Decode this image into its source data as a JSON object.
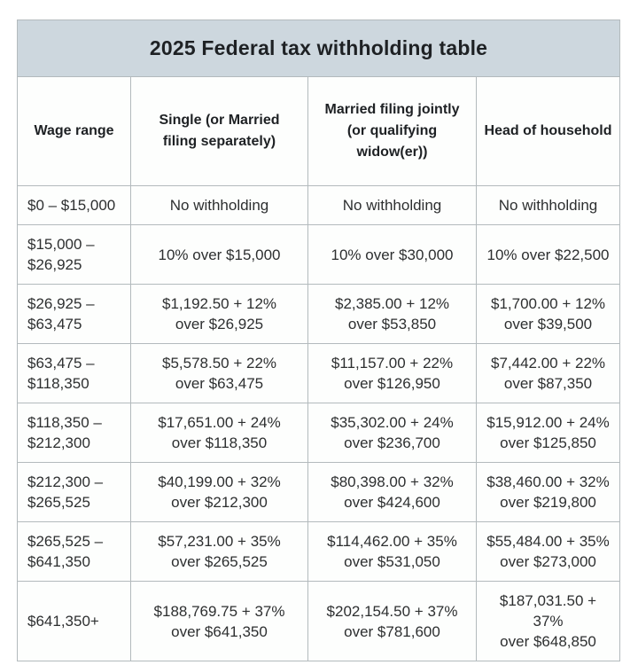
{
  "page": {
    "background": "#ffffff"
  },
  "table": {
    "title": "2025 Federal tax withholding table",
    "colors": {
      "title_bg": "#cdd7de",
      "border": "#b3babd",
      "cell_bg": "#fdfefd",
      "title_text": "#1e2124",
      "cell_text": "#2d2f30"
    },
    "headers": [
      "Wage range",
      "Single (or Married\nfiling separately)",
      "Married filing jointly\n(or qualifying\nwidow(er))",
      "Head of household"
    ],
    "rows": [
      {
        "cells": [
          "$0 – $15,000",
          "No withholding",
          "No withholding",
          "No withholding"
        ]
      },
      {
        "cells": [
          "$15,000 –\n$26,925",
          "10% over $15,000",
          "10% over $30,000",
          "10% over $22,500"
        ]
      },
      {
        "cells": [
          "$26,925 –\n$63,475",
          "$1,192.50 + 12%\nover $26,925",
          "$2,385.00 + 12%\nover $53,850",
          "$1,700.00 + 12%\nover $39,500"
        ]
      },
      {
        "cells": [
          "$63,475 –\n$118,350",
          "$5,578.50 + 22%\nover $63,475",
          "$11,157.00 + 22%\nover $126,950",
          "$7,442.00 + 22%\nover $87,350"
        ]
      },
      {
        "cells": [
          "$118,350 –\n$212,300",
          "$17,651.00 + 24%\nover $118,350",
          "$35,302.00 + 24%\nover $236,700",
          "$15,912.00 + 24%\nover $125,850"
        ]
      },
      {
        "cells": [
          "$212,300 –\n$265,525",
          "$40,199.00 + 32%\nover $212,300",
          "$80,398.00 + 32%\nover $424,600",
          "$38,460.00 + 32%\nover $219,800"
        ]
      },
      {
        "cells": [
          "$265,525 –\n$641,350",
          "$57,231.00 + 35%\nover $265,525",
          "$114,462.00 + 35%\nover $531,050",
          "$55,484.00 + 35%\nover $273,000"
        ]
      },
      {
        "cells": [
          "$641,350+",
          "$188,769.75 + 37%\nover $641,350",
          "$202,154.50 + 37%\nover $781,600",
          "$187,031.50 + 37%\nover $648,850"
        ]
      }
    ]
  }
}
